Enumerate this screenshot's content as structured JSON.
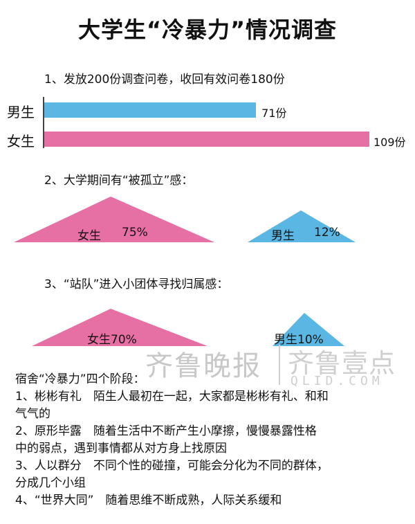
{
  "title": "大学生“冷暴力”情况调查",
  "section1": {
    "heading": "1、发放200份调查问卷，收回有效问卷180份"
  },
  "section2": {
    "heading": "2、大学期间有“被孤立”感："
  },
  "section3": {
    "heading": "3、“站队”进入小团体寻找归属感："
  },
  "colors": {
    "male": "#5ab6e2",
    "female": "#e66fa3"
  },
  "chart_data": [
    {
      "type": "bar",
      "orientation": "horizontal",
      "categories": [
        "男生",
        "女生"
      ],
      "values": [
        71,
        109
      ],
      "value_labels": [
        "71份",
        "109份"
      ],
      "xlim": [
        0,
        109
      ]
    },
    {
      "type": "triangle-comparison",
      "categories": [
        "女生",
        "男生"
      ],
      "values": [
        75,
        12
      ],
      "labels": {
        "female": "女生",
        "female_value": "75%",
        "male": "男生",
        "male_value": "12%"
      }
    },
    {
      "type": "triangle-comparison",
      "categories": [
        "女生",
        "男生"
      ],
      "values": [
        70,
        10
      ],
      "labels": {
        "female": "女生70%",
        "male": "男生10%"
      }
    }
  ],
  "watermark": {
    "calligraphy": "齐鲁晚报",
    "brand": "齐鲁壹点",
    "url": "QLID.COM"
  },
  "notes": {
    "heading": "宿舍“冷暴力”四个阶段：",
    "lines": [
      "1、彬彬有礼　陌生人最初在一起，大家都是彬彬有礼、和和",
      "气气的",
      "2、原形毕露　随着生活中不断产生小摩擦，慢慢暴露性格",
      "中的弱点，遇到事情都从对方身上找原因",
      "3、人以群分　不同个性的碰撞，可能会分化为不同的群体，",
      "分成几个小组",
      "4、“世界大同”　随着思维不断成熟，人际关系缓和"
    ]
  }
}
